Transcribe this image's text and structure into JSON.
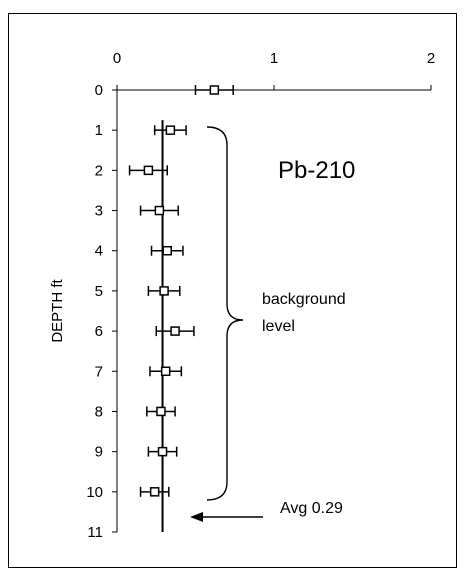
{
  "chart_data": {
    "type": "scatter",
    "ylabel": "DEPTH ft",
    "xlim": [
      0,
      2
    ],
    "ylim": [
      11,
      0
    ],
    "x_ticks": [
      "0",
      "1",
      "2"
    ],
    "y_ticks": [
      "0",
      "1",
      "2",
      "3",
      "4",
      "5",
      "6",
      "7",
      "8",
      "9",
      "10",
      "11"
    ],
    "points": [
      {
        "depth": 0,
        "value": 0.62,
        "error": 0.12
      },
      {
        "depth": 1,
        "value": 0.34,
        "error": 0.1
      },
      {
        "depth": 2,
        "value": 0.2,
        "error": 0.12
      },
      {
        "depth": 3,
        "value": 0.27,
        "error": 0.12
      },
      {
        "depth": 4,
        "value": 0.32,
        "error": 0.1
      },
      {
        "depth": 5,
        "value": 0.3,
        "error": 0.1
      },
      {
        "depth": 6,
        "value": 0.37,
        "error": 0.12
      },
      {
        "depth": 7,
        "value": 0.31,
        "error": 0.1
      },
      {
        "depth": 8,
        "value": 0.28,
        "error": 0.09
      },
      {
        "depth": 9,
        "value": 0.29,
        "error": 0.09
      },
      {
        "depth": 10,
        "value": 0.24,
        "error": 0.09
      }
    ],
    "average": 0.29,
    "annotations": {
      "isotope": "Pb-210",
      "background_line1": "background",
      "background_line2": "level",
      "avg_label": "Avg 0.29"
    },
    "grid": false,
    "legend": "none"
  }
}
